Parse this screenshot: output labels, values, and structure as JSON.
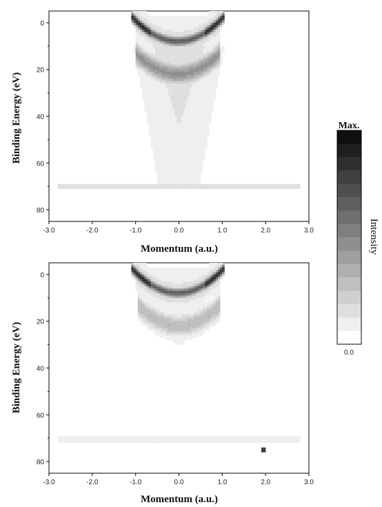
{
  "chart_data": [
    {
      "type": "heatmap",
      "panel": "top",
      "xlabel": "Momentum (a.u.)",
      "ylabel": "Binding Energy (eV)",
      "xlim": [
        -3.0,
        3.0
      ],
      "ylim": [
        85,
        -5
      ],
      "xticks": [
        "-3.0",
        "-2.0",
        "-1.0",
        "0.0",
        "1.0",
        "2.0",
        "3.0"
      ],
      "yticks": [
        "0",
        "20",
        "40",
        "60",
        "80"
      ],
      "features": {
        "valence_band": {
          "k_edges": [
            -0.95,
            0.9
          ],
          "E_top": 0,
          "E_bottom": 8,
          "peak_intensity": 0.9
        },
        "second_band": {
          "k_edges": [
            -0.95,
            0.9
          ],
          "E_top": 14,
          "E_bottom": 22,
          "peak_intensity": 0.45
        },
        "diffuse_cone": {
          "E_range": [
            25,
            70
          ],
          "max_half_width": 0.9,
          "intensity": 0.14
        },
        "line_feature": {
          "E": 70,
          "k_range": [
            -2.8,
            2.8
          ],
          "intensity": 0.12
        }
      }
    },
    {
      "type": "heatmap",
      "panel": "bottom",
      "xlabel": "Momentum (a.u.)",
      "ylabel": "Binding Energy (eV)",
      "xlim": [
        -3.0,
        3.0
      ],
      "ylim": [
        85,
        -5
      ],
      "xticks": [
        "-3.0",
        "-2.0",
        "-1.0",
        "0.0",
        "1.0",
        "2.0",
        "3.0"
      ],
      "yticks": [
        "0",
        "20",
        "40",
        "60",
        "80"
      ],
      "features": {
        "valence_band": {
          "k_edges": [
            -0.95,
            0.9
          ],
          "E_top": 0,
          "E_bottom": 8,
          "peak_intensity": 0.9
        },
        "second_band": {
          "k_edges": [
            -0.9,
            0.9
          ],
          "E_top": 14,
          "E_bottom": 22,
          "peak_intensity": 0.3
        },
        "diffuse_cone": {
          "E_range": [
            25,
            30
          ],
          "max_half_width": 0.4,
          "intensity": 0.08
        },
        "line_feature": {
          "E": 70.5,
          "k_range": [
            -2.8,
            2.8
          ],
          "intensity": 0.08
        },
        "spot": {
          "k": 1.95,
          "E": 75,
          "intensity": 0.8
        }
      }
    }
  ],
  "colorbar": {
    "title": "Max.",
    "min_label": "0.0",
    "side_label": "Intensity",
    "levels": 16
  }
}
